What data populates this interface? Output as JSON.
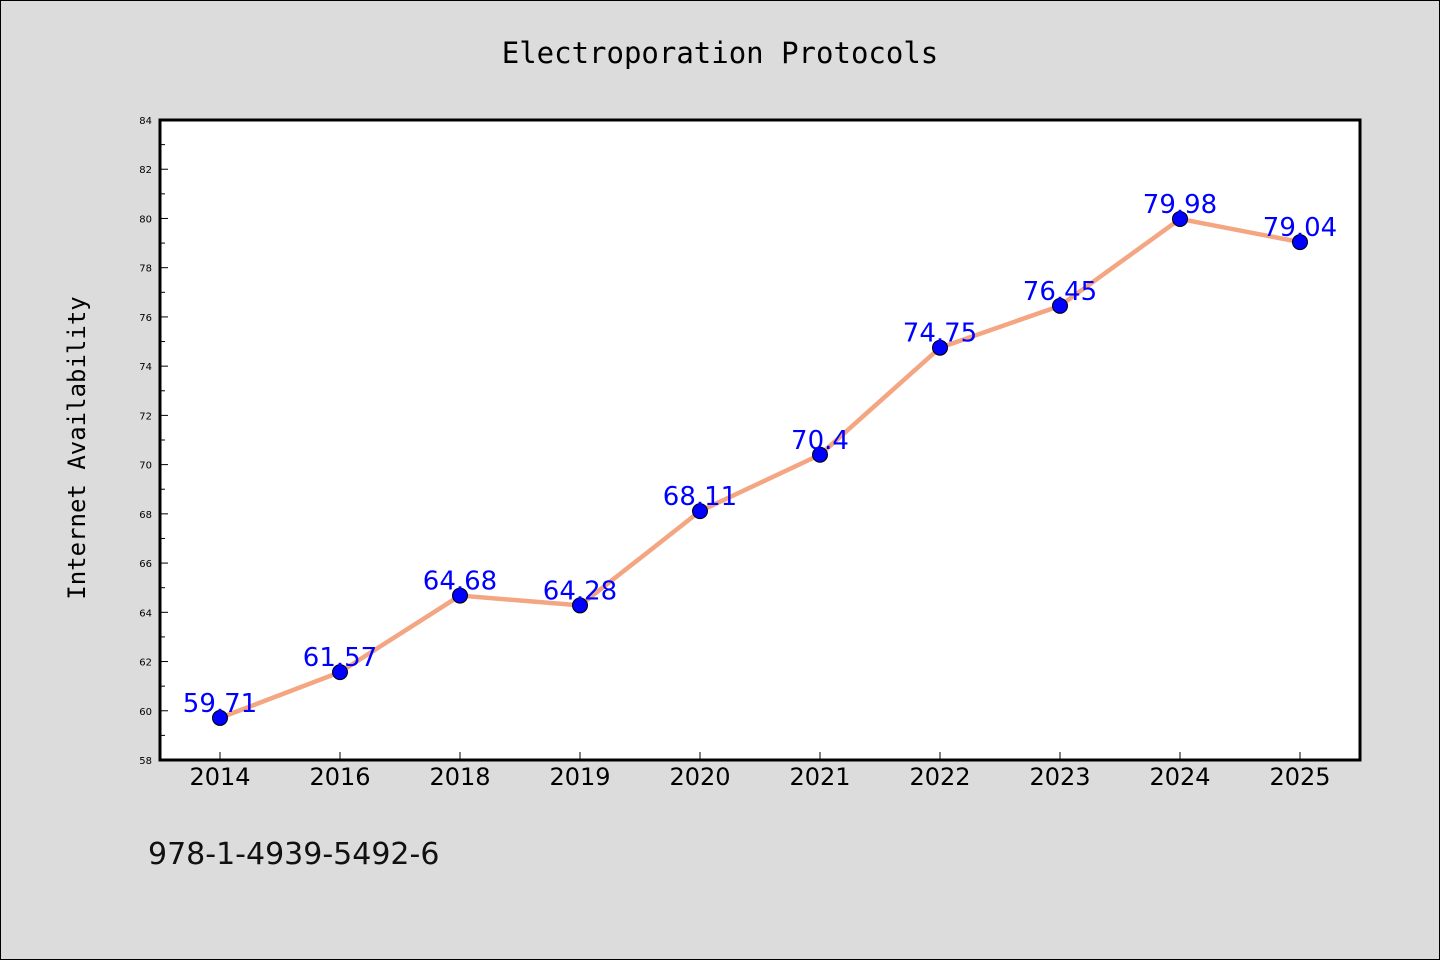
{
  "chart_data": {
    "type": "line",
    "title": "Electroporation Protocols",
    "xlabel": "",
    "ylabel": "Internet Availability",
    "categories": [
      "2014",
      "2016",
      "2018",
      "2019",
      "2020",
      "2021",
      "2022",
      "2023",
      "2024",
      "2025"
    ],
    "series": [
      {
        "values": [
          59.71,
          61.57,
          64.68,
          64.28,
          68.11,
          70.4,
          74.75,
          76.45,
          79.98,
          79.04
        ],
        "data_labels": [
          "59.71",
          "61.57",
          "64.68",
          "64.28",
          "68.11",
          "70.4",
          "74.75",
          "76.45",
          "79.98",
          "79.04"
        ]
      }
    ],
    "ylim": [
      58,
      84
    ],
    "yticks": [
      "58",
      "60",
      "62",
      "64",
      "66",
      "68",
      "70",
      "72",
      "74",
      "76",
      "78",
      "80",
      "82",
      "84"
    ],
    "grid": false,
    "legend": "none",
    "colors": {
      "line": "#f4a582",
      "marker": "#0000ff",
      "label": "#0000ff",
      "background": "#dcdcdc",
      "plot_background": "#ffffff"
    }
  },
  "footer": {
    "isbn": "978-1-4939-5492-6"
  }
}
